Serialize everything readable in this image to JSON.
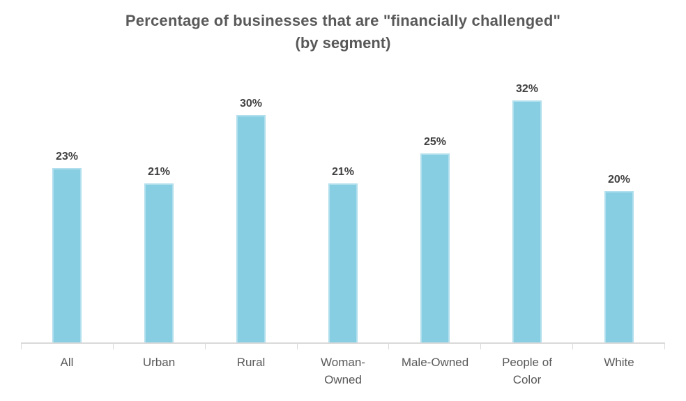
{
  "chart_data": {
    "type": "bar",
    "title": "Percentage of businesses that are \"financially challenged\"",
    "subtitle": "(by segment)",
    "categories": [
      "All",
      "Urban",
      "Rural",
      "Woman-Owned",
      "Male-Owned",
      "People of Color",
      "White"
    ],
    "category_labels": [
      "All",
      "Urban",
      "Rural",
      "Woman-\nOwned",
      "Male-Owned",
      "People of\nColor",
      "White"
    ],
    "values": [
      23,
      21,
      30,
      21,
      25,
      32,
      20
    ],
    "data_labels": [
      "23%",
      "21%",
      "30%",
      "21%",
      "25%",
      "32%",
      "20%"
    ],
    "xlabel": "",
    "ylabel": "",
    "ylim": [
      0,
      35
    ],
    "grid": false,
    "legend": "none",
    "colors": {
      "bar_fill": "#87CEE3",
      "axis_line": "#D9D9D9",
      "title_text": "#595959",
      "data_label_text": "#404040",
      "category_label_text": "#595959",
      "background": "#FFFFFF"
    }
  }
}
